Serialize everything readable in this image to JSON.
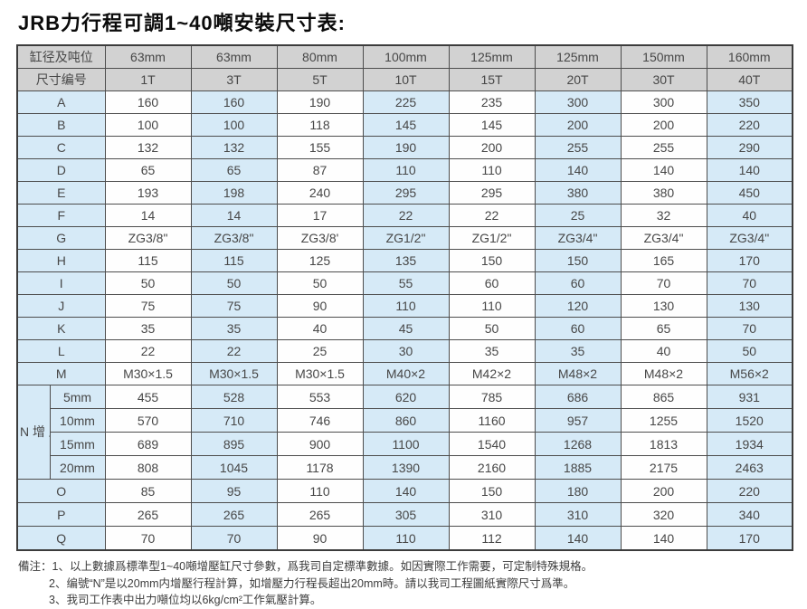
{
  "title": "JRB力行程可調1~40噸安裝尺寸表:",
  "table": {
    "header_rows": [
      {
        "label": "缸径及吨位",
        "cells": [
          "63mm",
          "63mm",
          "80mm",
          "100mm",
          "125mm",
          "125mm",
          "150mm",
          "160mm"
        ]
      },
      {
        "label": "尺寸编号",
        "cells": [
          "1T",
          "3T",
          "5T",
          "10T",
          "15T",
          "20T",
          "30T",
          "40T"
        ]
      }
    ],
    "rows": [
      {
        "label": "A",
        "cells": [
          "160",
          "160",
          "190",
          "225",
          "235",
          "300",
          "300",
          "350"
        ]
      },
      {
        "label": "B",
        "cells": [
          "100",
          "100",
          "118",
          "145",
          "145",
          "200",
          "200",
          "220"
        ]
      },
      {
        "label": "C",
        "cells": [
          "132",
          "132",
          "155",
          "190",
          "200",
          "255",
          "255",
          "290"
        ]
      },
      {
        "label": "D",
        "cells": [
          "65",
          "65",
          "87",
          "110",
          "110",
          "140",
          "140",
          "140"
        ]
      },
      {
        "label": "E",
        "cells": [
          "193",
          "198",
          "240",
          "295",
          "295",
          "380",
          "380",
          "450"
        ]
      },
      {
        "label": "F",
        "cells": [
          "14",
          "14",
          "17",
          "22",
          "22",
          "25",
          "32",
          "40"
        ]
      },
      {
        "label": "G",
        "cells": [
          "ZG3/8\"",
          "ZG3/8\"",
          "ZG3/8'",
          "ZG1/2\"",
          "ZG1/2\"",
          "ZG3/4\"",
          "ZG3/4\"",
          "ZG3/4\""
        ]
      },
      {
        "label": "H",
        "cells": [
          "115",
          "115",
          "125",
          "135",
          "150",
          "150",
          "165",
          "170"
        ]
      },
      {
        "label": "I",
        "cells": [
          "50",
          "50",
          "50",
          "55",
          "60",
          "60",
          "70",
          "70"
        ]
      },
      {
        "label": "J",
        "cells": [
          "75",
          "75",
          "90",
          "110",
          "110",
          "120",
          "130",
          "130"
        ]
      },
      {
        "label": "K",
        "cells": [
          "35",
          "35",
          "40",
          "45",
          "50",
          "60",
          "65",
          "70"
        ]
      },
      {
        "label": "L",
        "cells": [
          "22",
          "22",
          "25",
          "30",
          "35",
          "35",
          "40",
          "50"
        ]
      },
      {
        "label": "M",
        "cells": [
          "M30×1.5",
          "M30×1.5",
          "M30×1.5",
          "M40×2",
          "M42×2",
          "M48×2",
          "M48×2",
          "M56×2"
        ]
      }
    ],
    "n_group": {
      "vertical_label": "N\n增\n压\n行\n程",
      "sub_rows": [
        {
          "label": "5mm",
          "cells": [
            "455",
            "528",
            "553",
            "620",
            "785",
            "686",
            "865",
            "931"
          ]
        },
        {
          "label": "10mm",
          "cells": [
            "570",
            "710",
            "746",
            "860",
            "1160",
            "957",
            "1255",
            "1520"
          ]
        },
        {
          "label": "15mm",
          "cells": [
            "689",
            "895",
            "900",
            "1100",
            "1540",
            "1268",
            "1813",
            "1934"
          ]
        },
        {
          "label": "20mm",
          "cells": [
            "808",
            "1045",
            "1178",
            "1390",
            "2160",
            "1885",
            "2175",
            "2463"
          ]
        }
      ]
    },
    "rows_after": [
      {
        "label": "O",
        "cells": [
          "85",
          "95",
          "110",
          "140",
          "150",
          "180",
          "200",
          "220"
        ]
      },
      {
        "label": "P",
        "cells": [
          "265",
          "265",
          "265",
          "305",
          "310",
          "310",
          "320",
          "340"
        ]
      },
      {
        "label": "Q",
        "cells": [
          "70",
          "70",
          "90",
          "110",
          "112",
          "140",
          "140",
          "170"
        ]
      }
    ]
  },
  "notes": {
    "lines": [
      "備注：1、以上數據爲標準型1~40噸增壓缸尺寸參數，爲我司自定標準數據。如因實際工作需要，可定制特殊規格。",
      "2、编號“N”是以20mm内增壓行程計算，如增壓力行程長超出20mm時。請以我司工程圖紙實際尺寸爲準。",
      "3、我司工作表中出力噸位均以6kg/cm²工作氣壓計算。"
    ]
  },
  "colors": {
    "header_bg": "#d2d2d2",
    "accent_blue": "#d6eaf7",
    "border": "#4d4d4d"
  }
}
